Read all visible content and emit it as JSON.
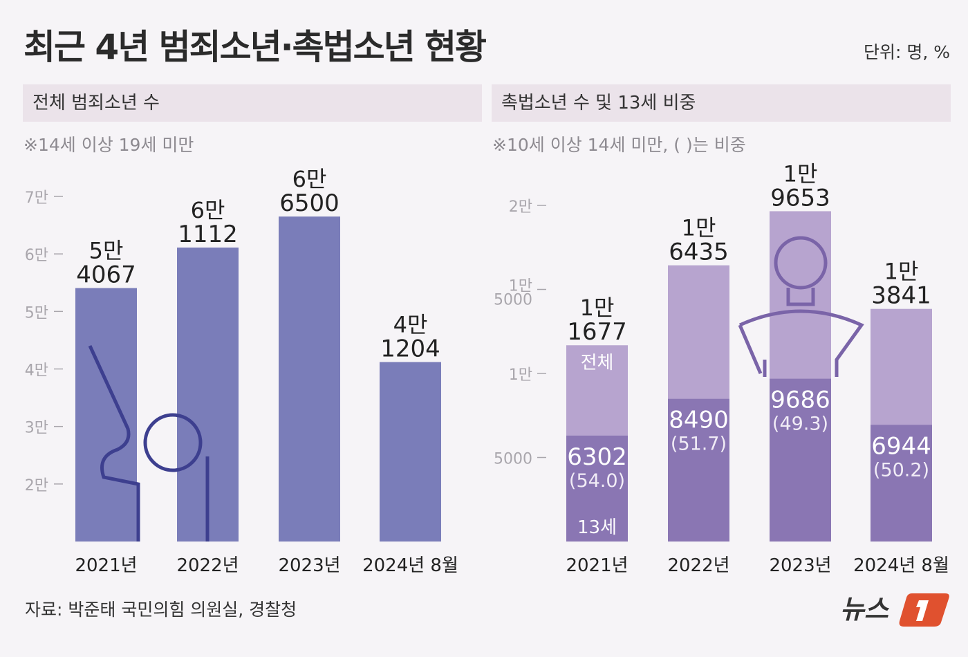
{
  "title": "최근 4년 범죄소년·촉법소년 현황",
  "unit": "단위: 명, %",
  "source": "자료: 박준태 국민의힘 의원실, 경찰청",
  "logo_text": "뉴스1",
  "colors": {
    "left_bar": "#7a7db9",
    "right_total": "#b7a4cf",
    "right_13": "#8a76b3",
    "logo": "#e0512f",
    "background": "#f6f4f7"
  },
  "chart_data": [
    {
      "type": "bar",
      "panel_title": "전체 범죄소년 수",
      "note": "※14세 이상 19세 미만",
      "categories": [
        "2021년",
        "2022년",
        "2023년",
        "2024년 8월"
      ],
      "values": [
        54067,
        61112,
        66500,
        41204
      ],
      "value_labels": [
        [
          "5만",
          "4067"
        ],
        [
          "6만",
          "1112"
        ],
        [
          "6만",
          "6500"
        ],
        [
          "4만",
          "1204"
        ]
      ],
      "ylim": [
        10000,
        70000
      ],
      "yticks": [
        20000,
        30000,
        40000,
        50000,
        60000,
        70000
      ],
      "ytick_labels": [
        "2만",
        "3만",
        "4만",
        "5만",
        "6만",
        "7만"
      ],
      "grid": false
    },
    {
      "type": "bar",
      "panel_title": "촉법소년 수 및 13세 비중",
      "note": "※10세 이상 14세 미만, ( )는 비중",
      "categories": [
        "2021년",
        "2022년",
        "2023년",
        "2024년 8월"
      ],
      "series": [
        {
          "name": "전체",
          "values": [
            11677,
            16435,
            19653,
            13841
          ]
        },
        {
          "name": "13세",
          "values": [
            6302,
            8490,
            9686,
            6944
          ],
          "shares": [
            "(54.0)",
            "(51.7)",
            "(49.3)",
            "(50.2)"
          ]
        }
      ],
      "total_labels": [
        [
          "1만",
          "1677"
        ],
        [
          "1만",
          "6435"
        ],
        [
          "1만",
          "9653"
        ],
        [
          "1만",
          "3841"
        ]
      ],
      "ylim": [
        0,
        20000
      ],
      "yticks": [
        5000,
        10000,
        15000,
        20000
      ],
      "ytick_labels": [
        [
          "5000"
        ],
        [
          "1만"
        ],
        [
          "1만",
          "5000"
        ],
        [
          "2만"
        ]
      ],
      "grid": false
    }
  ]
}
